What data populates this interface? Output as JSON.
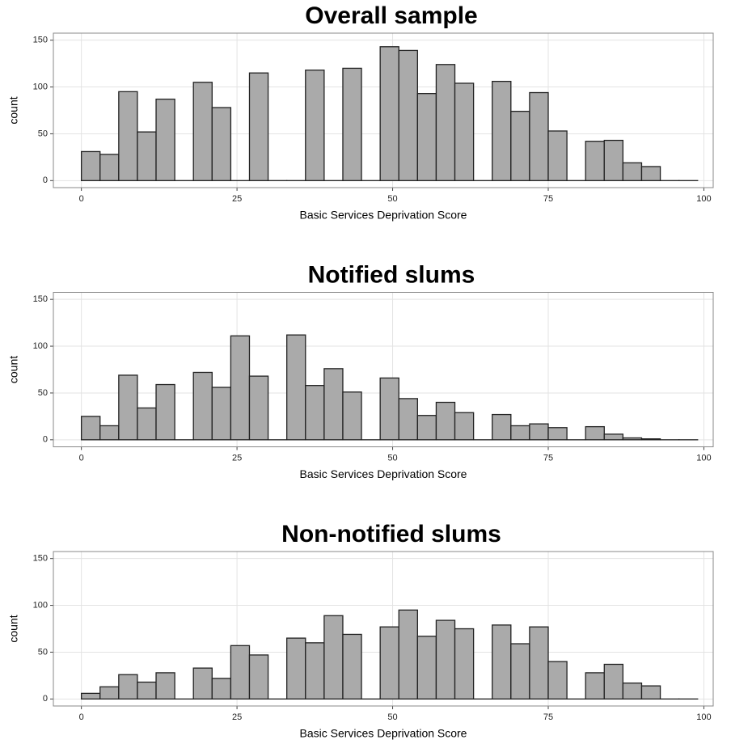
{
  "chart_data": [
    {
      "type": "histogram",
      "title": "Overall sample",
      "xlabel": "Basic Services Deprivation Score",
      "ylabel": "count",
      "bins": [
        0,
        3,
        6,
        9,
        12,
        15,
        18,
        21,
        24,
        27,
        30,
        33,
        36,
        39,
        42,
        45,
        48,
        51,
        54,
        57,
        60,
        63,
        66,
        69,
        72,
        75,
        78,
        81,
        84,
        87,
        90,
        93,
        96,
        99
      ],
      "counts": [
        31,
        28,
        95,
        52,
        87,
        0,
        105,
        78,
        0,
        115,
        0,
        0,
        118,
        0,
        120,
        0,
        143,
        139,
        93,
        124,
        104,
        0,
        106,
        74,
        94,
        53,
        0,
        42,
        43,
        19,
        15,
        0,
        0
      ],
      "color": "#aaaaaa",
      "edgecolor": "#222222",
      "xlim": [
        -4.5,
        101.5
      ],
      "ylim": [
        -7.5,
        157.5
      ],
      "xticks": [
        0,
        25,
        50,
        75,
        100
      ],
      "yticks": [
        0,
        50,
        100,
        150
      ],
      "grid": true
    },
    {
      "type": "histogram",
      "title": "Notified slums",
      "xlabel": "Basic Services Deprivation Score",
      "ylabel": "count",
      "bins": [
        0,
        3,
        6,
        9,
        12,
        15,
        18,
        21,
        24,
        27,
        30,
        33,
        36,
        39,
        42,
        45,
        48,
        51,
        54,
        57,
        60,
        63,
        66,
        69,
        72,
        75,
        78,
        81,
        84,
        87,
        90,
        93,
        96,
        99
      ],
      "counts": [
        25,
        15,
        69,
        34,
        59,
        0,
        72,
        56,
        111,
        68,
        0,
        112,
        58,
        76,
        51,
        0,
        66,
        44,
        26,
        40,
        29,
        0,
        27,
        15,
        17,
        13,
        0,
        14,
        6,
        2,
        1,
        0,
        0
      ],
      "color": "#aaaaaa",
      "edgecolor": "#222222",
      "xlim": [
        -4.5,
        101.5
      ],
      "ylim": [
        -7.5,
        157.5
      ],
      "xticks": [
        0,
        25,
        50,
        75,
        100
      ],
      "yticks": [
        0,
        50,
        100,
        150
      ],
      "grid": true
    },
    {
      "type": "histogram",
      "title": "Non-notified slums",
      "xlabel": "Basic Services Deprivation Score",
      "ylabel": "count",
      "bins": [
        0,
        3,
        6,
        9,
        12,
        15,
        18,
        21,
        24,
        27,
        30,
        33,
        36,
        39,
        42,
        45,
        48,
        51,
        54,
        57,
        60,
        63,
        66,
        69,
        72,
        75,
        78,
        81,
        84,
        87,
        90,
        93,
        96,
        99
      ],
      "counts": [
        6,
        13,
        26,
        18,
        28,
        0,
        33,
        22,
        57,
        47,
        0,
        65,
        60,
        89,
        69,
        0,
        77,
        95,
        67,
        84,
        75,
        0,
        79,
        59,
        77,
        40,
        0,
        28,
        37,
        17,
        14,
        0,
        0
      ],
      "color": "#aaaaaa",
      "edgecolor": "#222222",
      "xlim": [
        -4.5,
        101.5
      ],
      "ylim": [
        -7.5,
        157.5
      ],
      "xticks": [
        0,
        25,
        50,
        75,
        100
      ],
      "yticks": [
        0,
        50,
        100,
        150
      ],
      "grid": true
    }
  ]
}
